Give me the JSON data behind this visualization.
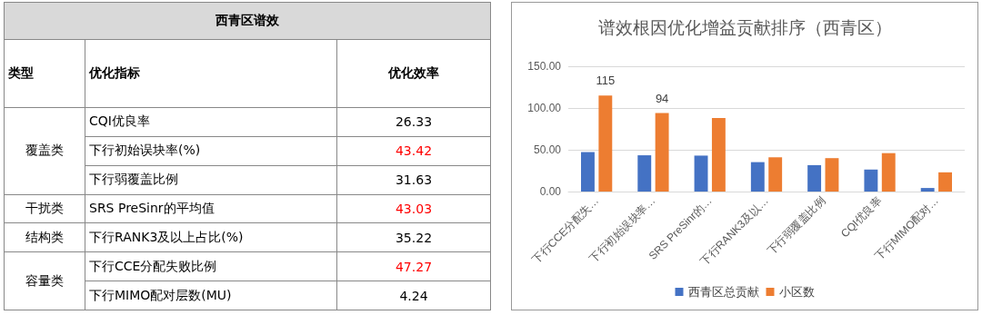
{
  "chart_data": [
    {
      "type": "other",
      "title": "西青区谱效",
      "annotations": [
        "类型",
        "优化指标",
        "优化效率",
        "覆盖类",
        "CQI优良率",
        "26.33",
        "下行初始误块率(%)",
        "43.42",
        "下行弱覆盖比例",
        "31.63",
        "干扰类",
        "SRS PreSinr的平均值",
        "43.03",
        "结构类",
        "下行RANK3及以上占比(%)",
        "35.22",
        "容量类",
        "下行CCE分配失败比例",
        "47.27",
        "下行MIMO配对层数(MU)",
        "4.24"
      ]
    },
    {
      "type": "bar",
      "title": "谱效根因优化增益贡献排序（西青区）",
      "categories": [
        "下行CCE分配失…",
        "下行初始误块率…",
        "SRS PreSinr的…",
        "下行RANK3及以…",
        "下行弱覆盖比例",
        "CQI优良率",
        "下行MIMO配对…"
      ],
      "series": [
        {
          "name": "西青区总贡献",
          "color": "#4472c4",
          "values": [
            47.27,
            43.42,
            43.03,
            35.22,
            31.63,
            26.33,
            4.24
          ]
        },
        {
          "name": "小区数",
          "color": "#ed7d31",
          "values": [
            115,
            94,
            88,
            41,
            40,
            46,
            23
          ],
          "value_labels": [
            "115",
            "94",
            null,
            null,
            null,
            null,
            null
          ]
        }
      ],
      "ylim": [
        0,
        150
      ],
      "yticks": [
        {
          "value": 0,
          "label": "0.00"
        },
        {
          "value": 50,
          "label": "50.00"
        },
        {
          "value": 100,
          "label": "100.00"
        },
        {
          "value": 150,
          "label": "150.00"
        }
      ],
      "grid": "y",
      "legend": "bottom"
    }
  ]
}
